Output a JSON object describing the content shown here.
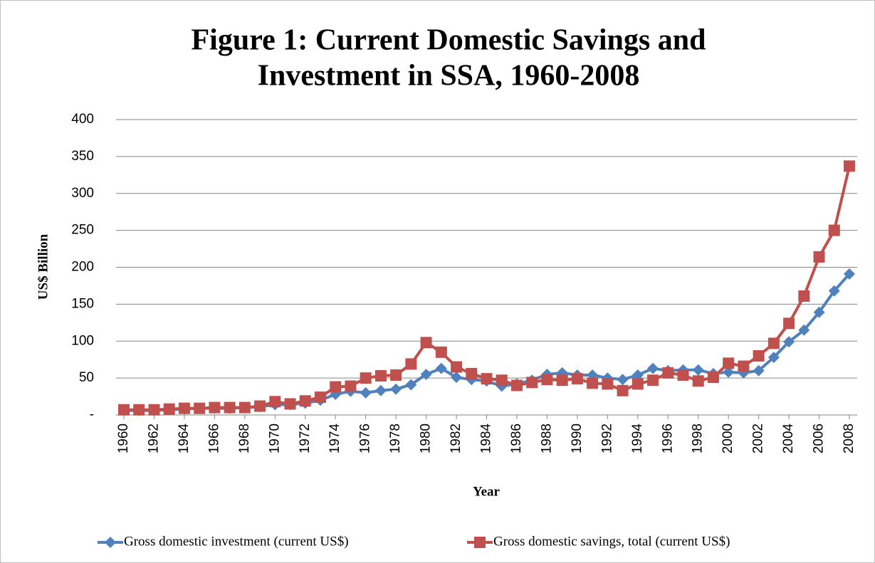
{
  "chart_data": {
    "type": "line",
    "title": [
      "Figure 1: Current Domestic Savings and",
      "Investment in SSA, 1960-2008"
    ],
    "xlabel": "Year",
    "ylabel": "US$ Billion",
    "x": [
      1960,
      1961,
      1962,
      1963,
      1964,
      1965,
      1966,
      1967,
      1968,
      1969,
      1970,
      1971,
      1972,
      1973,
      1974,
      1975,
      1976,
      1977,
      1978,
      1979,
      1980,
      1981,
      1982,
      1983,
      1984,
      1985,
      1986,
      1987,
      1988,
      1989,
      1990,
      1991,
      1992,
      1993,
      1994,
      1995,
      1996,
      1997,
      1998,
      1999,
      2000,
      2001,
      2002,
      2003,
      2004,
      2005,
      2006,
      2007,
      2008
    ],
    "xlim": [
      1960,
      2008
    ],
    "xticks": [
      1960,
      1962,
      1964,
      1966,
      1968,
      1970,
      1972,
      1974,
      1976,
      1978,
      1980,
      1982,
      1984,
      1986,
      1988,
      1990,
      1992,
      1994,
      1996,
      1998,
      2000,
      2002,
      2004,
      2006,
      2008
    ],
    "ylim": [
      0,
      400
    ],
    "yticks": [
      {
        "value": 0,
        "label": "-"
      },
      50,
      100,
      150,
      200,
      250,
      300,
      350,
      400
    ],
    "grid": true,
    "legend": "bottom",
    "series": [
      {
        "name": "Gross domestic investment (current US$)",
        "color": "#4f81bd",
        "marker": "diamond",
        "values": [
          6,
          6,
          6,
          7,
          8,
          9,
          9,
          9,
          10,
          11,
          14,
          14,
          16,
          20,
          28,
          32,
          30,
          33,
          35,
          41,
          55,
          63,
          51,
          48,
          46,
          39,
          42,
          47,
          55,
          57,
          54,
          54,
          50,
          48,
          54,
          63,
          60,
          61,
          61,
          56,
          58,
          57,
          60,
          78,
          99,
          115,
          139,
          168,
          191
        ]
      },
      {
        "name": "Gross domestic savings, total (current US$)",
        "color": "#c0504d",
        "marker": "square",
        "values": [
          7,
          7,
          7,
          8,
          9,
          9,
          10,
          10,
          10,
          12,
          18,
          15,
          19,
          24,
          38,
          39,
          50,
          53,
          54,
          69,
          98,
          85,
          65,
          56,
          49,
          47,
          40,
          44,
          48,
          47,
          49,
          43,
          42,
          33,
          42,
          47,
          57,
          54,
          46,
          51,
          70,
          66,
          80,
          97,
          124,
          161,
          214,
          250,
          337
        ]
      }
    ]
  }
}
